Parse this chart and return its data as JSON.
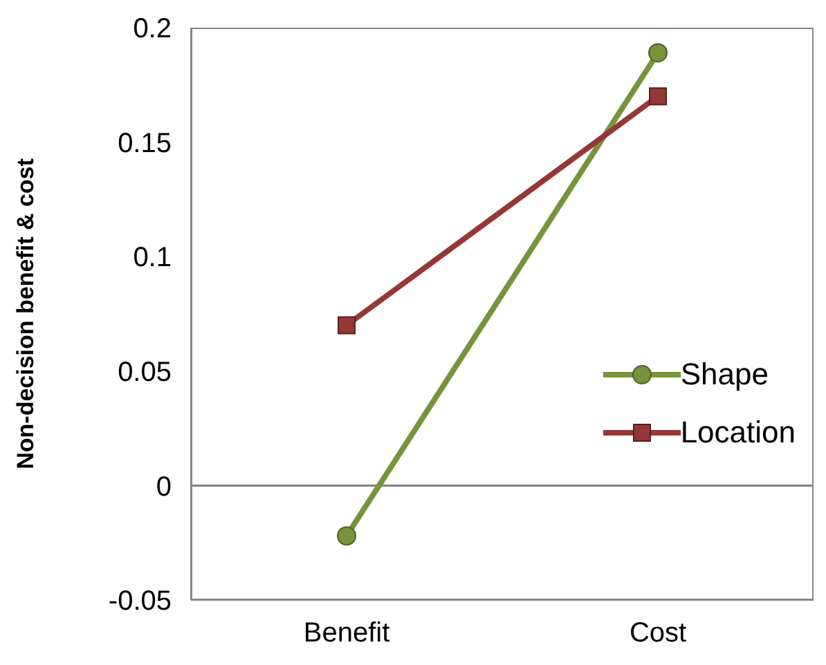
{
  "chart_data": {
    "type": "line",
    "ylabel": "Non-decision benefit & cost",
    "categories": [
      "Benefit",
      "Cost"
    ],
    "series": [
      {
        "name": "Shape",
        "color": "#77933c",
        "values": [
          -0.022,
          0.189
        ],
        "marker": "circle"
      },
      {
        "name": "Location",
        "color": "#953735",
        "values": [
          0.07,
          0.17
        ],
        "marker": "square"
      }
    ],
    "ylim": [
      -0.05,
      0.2
    ],
    "yticks": [
      -0.05,
      0,
      0.05,
      0.1,
      0.15,
      0.2
    ],
    "legend": "right",
    "ref_lines": [
      {
        "axis": "y",
        "value": 0,
        "color": "#808080"
      }
    ]
  }
}
